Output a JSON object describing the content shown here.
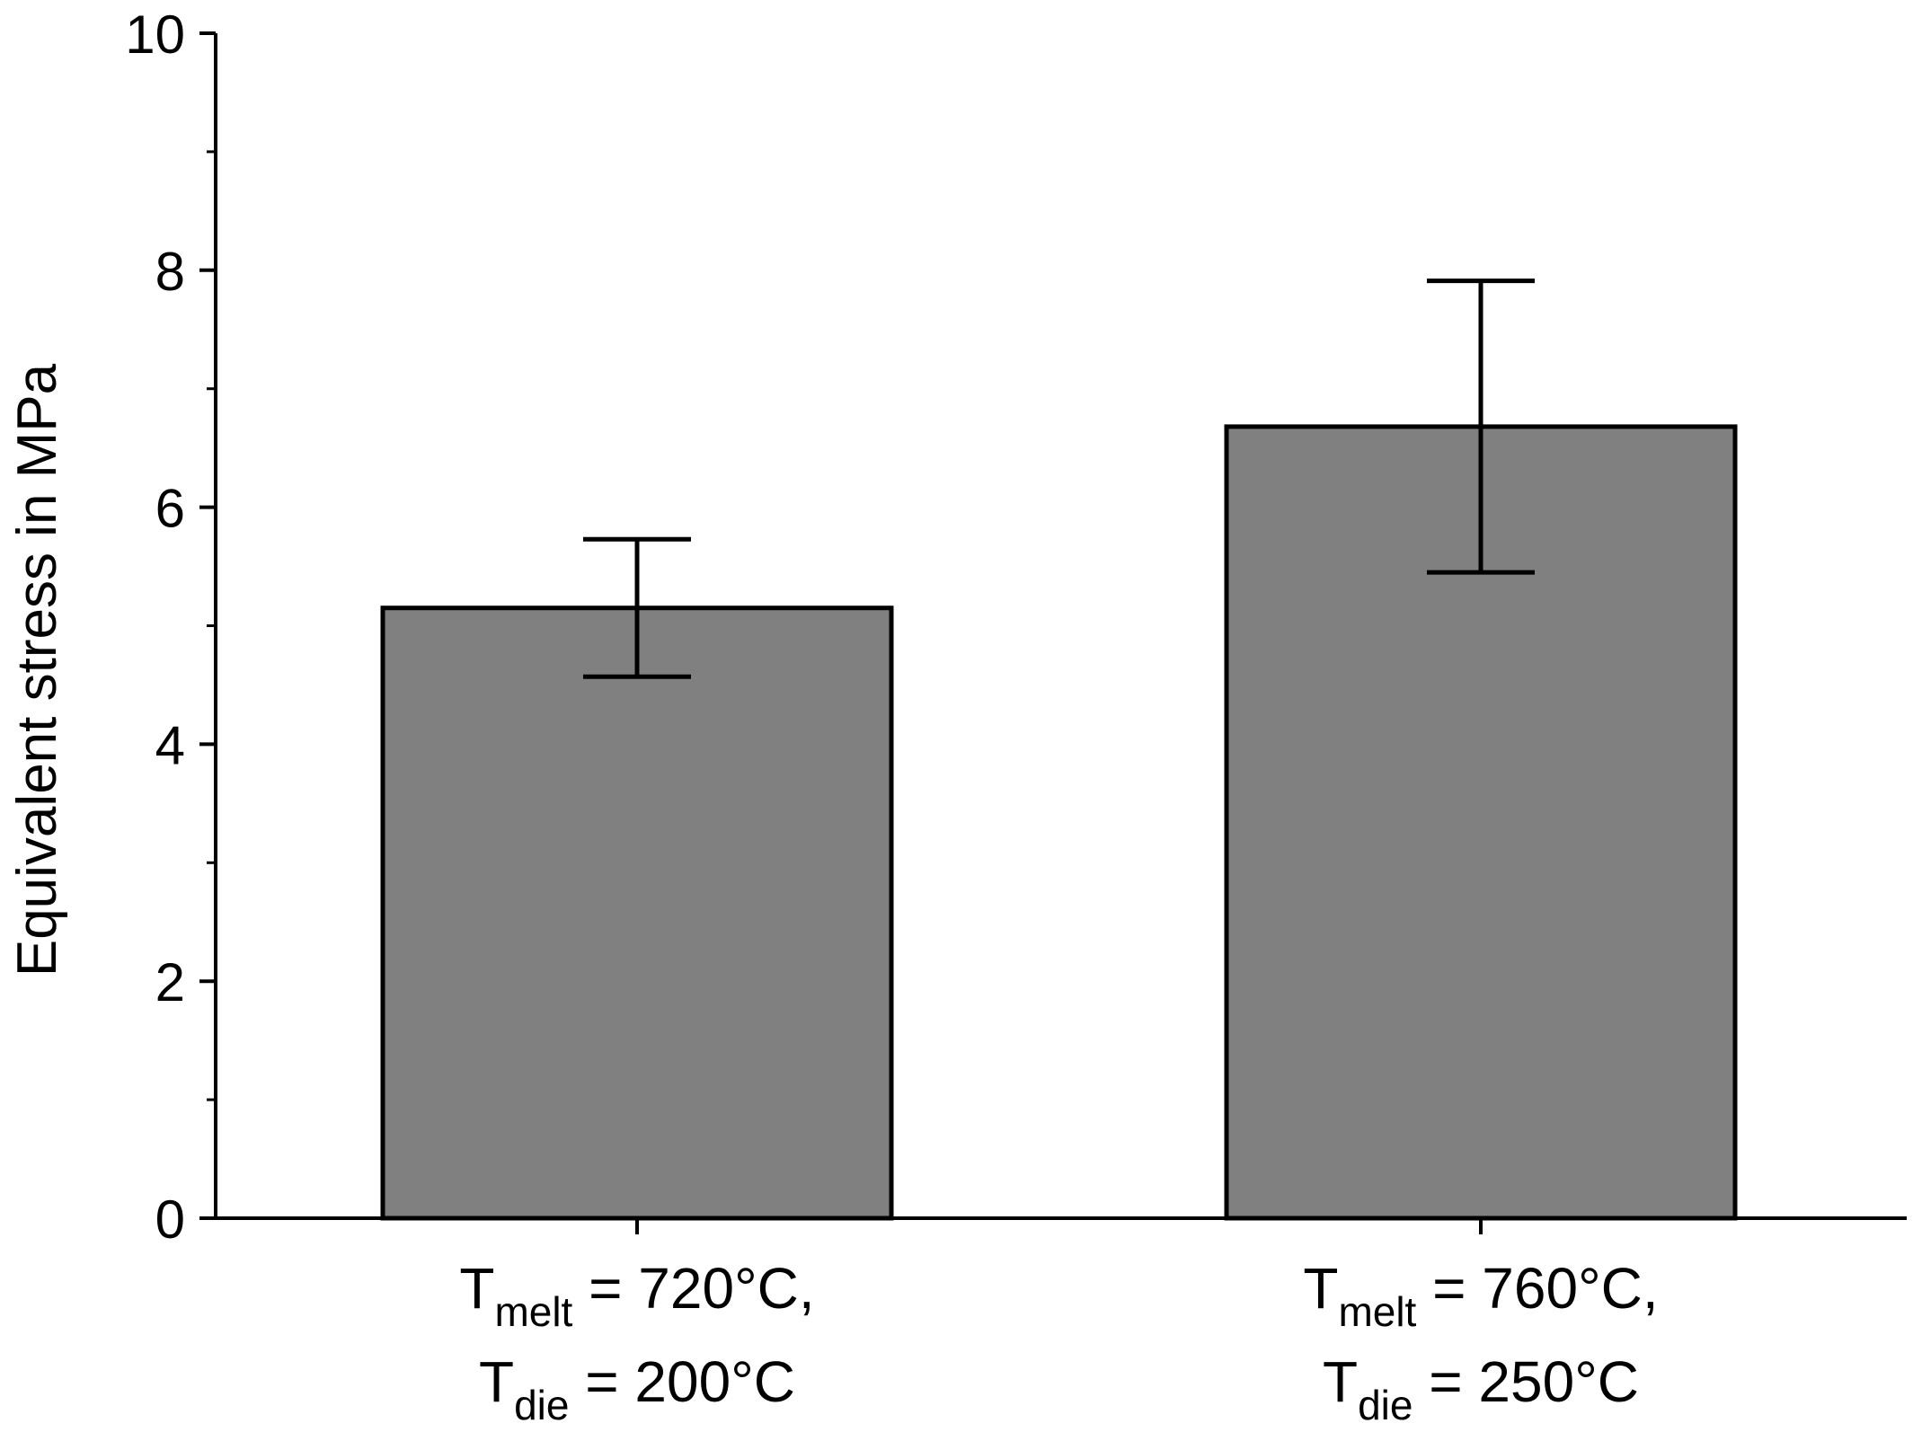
{
  "chart_data": {
    "type": "bar",
    "title": "",
    "xlabel": "",
    "ylabel": "Equivalent stress in MPa",
    "ylim": [
      0,
      10
    ],
    "y_ticks": [
      "0",
      "2",
      "4",
      "6",
      "8",
      "10"
    ],
    "grid": false,
    "bar_color": "#808080",
    "categories": [
      {
        "line1": {
          "base": "T",
          "sub": "melt",
          "rest": " = 720°C,"
        },
        "line2": {
          "base": "T",
          "sub": "die",
          "rest": " = 200°C"
        }
      },
      {
        "line1": {
          "base": "T",
          "sub": "melt",
          "rest": " = 760°C,"
        },
        "line2": {
          "base": "T",
          "sub": "die",
          "rest": " = 250°C"
        }
      }
    ],
    "values": [
      5.15,
      6.68
    ],
    "error_low": [
      4.57,
      5.45
    ],
    "error_high": [
      5.73,
      7.91
    ]
  }
}
